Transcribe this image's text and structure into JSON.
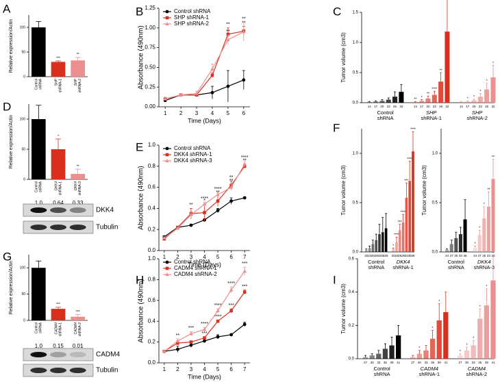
{
  "chart_data": [
    {
      "type": "bar",
      "label": "A",
      "ylabel": "Relative expression/Actin",
      "categories": [
        [
          "Control",
          "shRNA"
        ],
        [
          "SHP",
          "shRNA-1"
        ],
        [
          "SHP",
          "shRNA-2"
        ]
      ],
      "values": [
        100,
        30,
        33
      ],
      "errors": [
        12,
        2,
        6
      ],
      "stars": [
        null,
        "***",
        "**"
      ],
      "colors": [
        "#000000",
        "#d7301f",
        "#eb8f8f"
      ],
      "ylim": [
        0,
        125
      ],
      "yticks": [
        0,
        50,
        100
      ]
    },
    {
      "type": "line",
      "label": "B",
      "xlabel": "Time (Days)",
      "ylabel": "Absorbance (490nm)",
      "x": [
        1,
        2,
        3,
        4,
        5,
        6
      ],
      "xlim": [
        0.6,
        6.4
      ],
      "xticks": [
        1,
        2,
        3,
        4,
        5,
        6
      ],
      "ylim": [
        0,
        1.25
      ],
      "yticks": [
        {
          "value": 0,
          "label": "0.00"
        },
        0.25,
        {
          "value": 0.5,
          "label": "0.50"
        },
        0.75,
        {
          "value": 1,
          "label": "1.00"
        },
        1.25
      ],
      "series": [
        {
          "name": "Control shRNA",
          "color": "#000000",
          "values": [
            0.08,
            0.15,
            0.15,
            0.18,
            0.26,
            0.34
          ],
          "errors": [
            0.02,
            0.01,
            0.02,
            0.08,
            0.2,
            0.12
          ],
          "stars": [
            null,
            null,
            null,
            null,
            null,
            null
          ]
        },
        {
          "name": "SHP shRNA-1",
          "color": "#d7301f",
          "values": [
            0.1,
            0.15,
            0.15,
            0.4,
            0.92,
            0.96
          ],
          "errors": [
            0.02,
            0.01,
            0.02,
            0.03,
            0.08,
            0.06
          ],
          "stars": [
            null,
            null,
            null,
            null,
            "**",
            "**"
          ]
        },
        {
          "name": "SHP shRNA-2",
          "color": "#eb8f8f",
          "values": [
            0.1,
            0.15,
            0.17,
            0.48,
            0.85,
            0.95
          ],
          "errors": [
            0.02,
            0.01,
            0.03,
            0.06,
            0.06,
            0.12
          ],
          "stars": [
            null,
            null,
            null,
            null,
            "**",
            "**"
          ]
        }
      ]
    },
    {
      "type": "tumor",
      "label": "C",
      "ylabel": "Tumor volume (cm3)",
      "ylim": [
        0,
        1.5
      ],
      "yticks": [
        {
          "value": 0,
          "label": "0.0"
        },
        0.5,
        {
          "value": 1,
          "label": "1.0"
        },
        1.5
      ],
      "groups": [
        {
          "name": [
            "Control",
            "shRNA"
          ],
          "color": "#000000",
          "days": [
            14,
            17,
            20,
            23,
            26,
            32
          ],
          "values": [
            0.01,
            0.02,
            0.03,
            0.05,
            0.1,
            0.18
          ],
          "errors": [
            0.01,
            0.01,
            0.02,
            0.03,
            0.08,
            0.12
          ],
          "stars": [
            null,
            null,
            null,
            null,
            null,
            null
          ]
        },
        {
          "name": [
            "SHP",
            "shRNA-1"
          ],
          "color": "#d7301f",
          "days": [
            14,
            17,
            20,
            23,
            26,
            32
          ],
          "values": [
            0.01,
            0.03,
            0.07,
            0.13,
            0.35,
            1.18
          ],
          "errors": [
            0.01,
            0.02,
            0.04,
            0.06,
            0.15,
            0.85
          ],
          "stars": [
            "**",
            "*",
            "**",
            "****",
            "**",
            "**"
          ]
        },
        {
          "name": [
            "SHP",
            "shRNA-2"
          ],
          "color": "#eb8f8f",
          "days": [
            14,
            17,
            20,
            23,
            26,
            32
          ],
          "values": [
            0.01,
            0.02,
            0.04,
            0.1,
            0.22,
            0.42
          ],
          "errors": [
            0.01,
            0.01,
            0.02,
            0.05,
            0.1,
            0.2
          ],
          "stars": [
            null,
            "*",
            "*",
            "*",
            "*",
            "*"
          ]
        }
      ]
    },
    {
      "type": "bar",
      "label": "D",
      "ylabel": "Relative expression/Actin",
      "categories": [
        [
          "Control",
          "shRNA"
        ],
        [
          "DKK4",
          "shRNA-1"
        ],
        [
          "DKK4",
          "shRNA-3"
        ]
      ],
      "values": [
        100,
        50,
        9
      ],
      "errors": [
        23,
        17,
        8
      ],
      "stars": [
        null,
        "*",
        "**"
      ],
      "colors": [
        "#000000",
        "#d7301f",
        "#eb8f8f"
      ],
      "ylim": [
        0,
        125
      ],
      "yticks": [
        0,
        50,
        100
      ],
      "blot": {
        "bands": [
          "DKK4",
          "Tubulin"
        ],
        "values": [
          1.0,
          0.64,
          0.33
        ],
        "value_labels": [
          "1.0",
          "0.64",
          "0.33"
        ]
      }
    },
    {
      "type": "line",
      "label": "E",
      "xlabel": "Time (Days)",
      "ylabel": "Absorbance (490nm)",
      "x": [
        1,
        2,
        3,
        4,
        5,
        6,
        7
      ],
      "xlim": [
        0.6,
        7.4
      ],
      "xticks": [
        1,
        2,
        3,
        4,
        5,
        6,
        7
      ],
      "ylim": [
        0,
        1
      ],
      "yticks": [
        {
          "value": 0,
          "label": "0.0"
        },
        0.2,
        0.4,
        0.6,
        0.8,
        {
          "value": 1,
          "label": "1.0"
        }
      ],
      "series": [
        {
          "name": "Control shRNA",
          "color": "#000000",
          "values": [
            0.13,
            0.22,
            0.24,
            0.29,
            0.38,
            0.47,
            0.5
          ],
          "errors": [
            0.01,
            0.01,
            0.01,
            0.01,
            0.02,
            0.03,
            0.01
          ],
          "stars": [
            null,
            null,
            null,
            null,
            null,
            null,
            null
          ]
        },
        {
          "name": "DKK4 shRNA-1",
          "color": "#d7301f",
          "values": [
            0.11,
            0.22,
            0.35,
            0.36,
            0.47,
            0.62,
            0.8
          ],
          "errors": [
            0.01,
            0.01,
            0.05,
            0.08,
            0.05,
            0.04,
            0.02
          ],
          "stars": [
            null,
            null,
            "**",
            "*",
            "**",
            "**",
            "**"
          ]
        },
        {
          "name": "DKK4 shRNA-3",
          "color": "#eb8f8f",
          "values": [
            0.12,
            0.21,
            0.34,
            0.44,
            0.53,
            0.6,
            0.82
          ],
          "errors": [
            0.01,
            0.01,
            0.03,
            0.02,
            0.02,
            0.03,
            0.03
          ],
          "stars": [
            null,
            null,
            null,
            "****",
            "****",
            "**",
            "****"
          ]
        }
      ]
    },
    {
      "type": "tumor",
      "label": "F",
      "ylabel": "Tumor volume (cm3)",
      "ylim": [
        0,
        1.25
      ],
      "yticks": [
        {
          "value": 0,
          "label": "0.0"
        },
        0.5,
        {
          "value": 1,
          "label": "1.0"
        }
      ],
      "groups": [
        {
          "name": [
            "Control",
            "shRNA"
          ],
          "color": "#000000",
          "days": [
            20,
            23,
            26,
            29,
            32,
            35,
            38
          ],
          "values": [
            0.02,
            0.04,
            0.08,
            0.12,
            0.18,
            0.2,
            0.24
          ],
          "errors": [
            0.01,
            0.02,
            0.04,
            0.06,
            0.1,
            0.15,
            0.15
          ],
          "stars": [
            null,
            null,
            null,
            null,
            null,
            null,
            null
          ]
        },
        {
          "name": [
            "DKK4",
            "shRNA-1"
          ],
          "color": "#d7301f",
          "days": [
            20,
            23,
            26,
            29,
            32,
            35,
            38
          ],
          "values": [
            0.03,
            0.1,
            0.22,
            0.3,
            0.55,
            0.72,
            1.02
          ],
          "errors": [
            0.01,
            0.05,
            0.06,
            0.08,
            0.15,
            0.2,
            0.2
          ],
          "stars": [
            "*",
            "****",
            "***",
            "****",
            "***",
            "****",
            "****"
          ]
        }
      ]
    },
    {
      "type": "tumor",
      "ylabel": "Tumor volume (cm3)",
      "ylim": [
        0,
        1.25
      ],
      "yticks": [
        {
          "value": 0,
          "label": "0.0"
        },
        0.5,
        {
          "value": 1,
          "label": "1.0"
        }
      ],
      "groups": [
        {
          "name": [
            "Control",
            "shRNA"
          ],
          "color": "#000000",
          "days": [
            24,
            27,
            30,
            33,
            36
          ],
          "values": [
            0.02,
            0.08,
            0.14,
            0.18,
            0.33
          ],
          "errors": [
            0.01,
            0.04,
            0.06,
            0.07,
            0.2
          ],
          "stars": [
            null,
            null,
            null,
            null,
            null
          ]
        },
        {
          "name": [
            "DKK4",
            "shRNA-3"
          ],
          "color": "#eb8f8f",
          "days": [
            24,
            27,
            30,
            33,
            36
          ],
          "values": [
            0.04,
            0.17,
            0.34,
            0.46,
            0.74
          ],
          "errors": [
            0.02,
            0.05,
            0.12,
            0.15,
            0.2
          ],
          "stars": [
            "*",
            "*",
            "*",
            "**",
            "**"
          ]
        }
      ]
    },
    {
      "type": "bar",
      "label": "G",
      "ylabel": "Relative expression/Actin",
      "categories": [
        [
          "Control",
          "shRNA"
        ],
        [
          "CADM4",
          "shRNA-1"
        ],
        [
          "CADM4",
          "shRNA-2"
        ]
      ],
      "values": [
        100,
        22,
        7
      ],
      "errors": [
        13,
        3,
        4
      ],
      "stars": [
        null,
        "***",
        "***"
      ],
      "colors": [
        "#000000",
        "#d7301f",
        "#eb8f8f"
      ],
      "ylim": [
        0,
        125
      ],
      "yticks": [
        0,
        50,
        100
      ],
      "blot": {
        "bands": [
          "CADM4",
          "Tubulin"
        ],
        "values": [
          1.0,
          0.15,
          0.01
        ],
        "value_labels": [
          "1.0",
          "0.15",
          "0.01"
        ]
      }
    },
    {
      "type": "line",
      "label": "H",
      "xlabel": "Time (Days)",
      "ylabel": "Absorbance (490nm)",
      "x": [
        1,
        2,
        3,
        4,
        5,
        6,
        7
      ],
      "xlim": [
        0.6,
        7.4
      ],
      "xticks": [
        1,
        2,
        3,
        4,
        5,
        6,
        7
      ],
      "ylim": [
        0,
        1
      ],
      "yticks": [
        {
          "value": 0,
          "label": "0.0"
        },
        0.2,
        0.4,
        0.6,
        0.8,
        {
          "value": 1,
          "label": "1.0"
        }
      ],
      "series": [
        {
          "name": "Control shRNA",
          "color": "#000000",
          "values": [
            0.11,
            0.13,
            0.17,
            0.21,
            0.25,
            0.27,
            0.37
          ],
          "errors": [
            0.01,
            0.03,
            0.02,
            0.01,
            0.02,
            0.01,
            0.02
          ],
          "stars": [
            null,
            null,
            null,
            null,
            null,
            null,
            null
          ]
        },
        {
          "name": "CADM4 shRNA-1",
          "color": "#d7301f",
          "values": [
            0.11,
            0.19,
            0.2,
            0.24,
            0.4,
            0.5,
            0.68
          ],
          "errors": [
            0.01,
            0.02,
            0.01,
            0.01,
            0.01,
            0.02,
            0.02
          ],
          "stars": [
            null,
            null,
            null,
            "***",
            "****",
            "***",
            "***"
          ]
        },
        {
          "name": "CADM4 shRNA-2",
          "color": "#eb8f8f",
          "values": [
            0.11,
            0.21,
            0.28,
            0.32,
            0.5,
            0.7,
            0.88
          ],
          "errors": [
            0.01,
            0.02,
            0.02,
            0.02,
            0.02,
            0.03,
            0.04
          ],
          "stars": [
            null,
            "**",
            "***",
            "****",
            "****",
            "****",
            "***"
          ]
        }
      ]
    },
    {
      "type": "tumor",
      "label": "I",
      "ylabel": "Tumor volume (cm3)",
      "ylim": [
        0,
        0.6
      ],
      "yticks": [
        {
          "value": 0,
          "label": "0.0"
        },
        0.2,
        0.4,
        0.6
      ],
      "groups": [
        {
          "name": [
            "Control",
            "shRNA"
          ],
          "color": "#000000",
          "days": [
            27,
            30,
            33,
            36,
            39,
            41
          ],
          "values": [
            0.01,
            0.02,
            0.03,
            0.06,
            0.08,
            0.14
          ],
          "errors": [
            0.01,
            0.01,
            0.02,
            0.03,
            0.05,
            0.06
          ],
          "stars": [
            null,
            null,
            null,
            null,
            null,
            null
          ]
        },
        {
          "name": [
            "CADM4",
            "shRNA-1"
          ],
          "color": "#d7301f",
          "days": [
            27,
            30,
            33,
            36,
            39,
            41
          ],
          "values": [
            0.01,
            0.03,
            0.05,
            0.12,
            0.23,
            0.28
          ],
          "errors": [
            0.01,
            0.02,
            0.03,
            0.05,
            0.1,
            0.12
          ],
          "stars": [
            null,
            "*",
            null,
            "*",
            "*",
            null
          ]
        },
        {
          "name": [
            "CADM4",
            "shRNA-2"
          ],
          "color": "#eb8f8f",
          "days": [
            27,
            30,
            33,
            36,
            39,
            41
          ],
          "values": [
            0.02,
            0.05,
            0.08,
            0.24,
            0.32,
            0.47
          ],
          "errors": [
            0.01,
            0.02,
            0.03,
            0.06,
            0.1,
            0.15
          ],
          "stars": [
            "*",
            "*",
            "*",
            "*",
            "*",
            "*"
          ]
        }
      ]
    }
  ]
}
